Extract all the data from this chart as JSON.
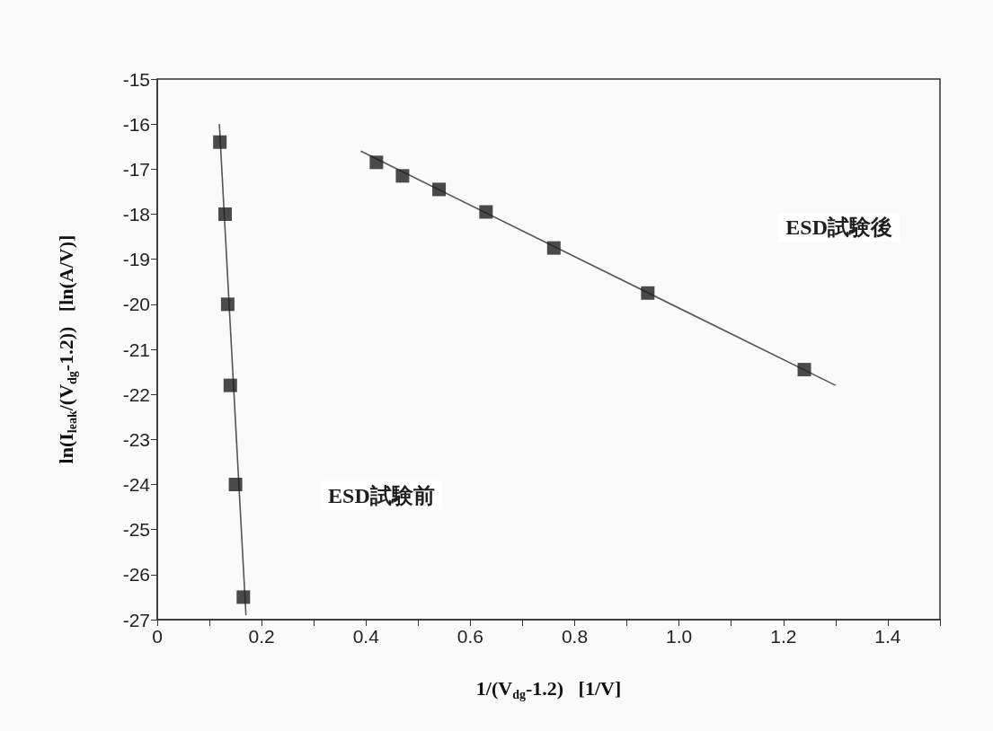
{
  "chart_data": {
    "type": "scatter",
    "xlabel": "1/(V$_{dg}$-1.2)   [1/V]",
    "ylabel": "ln(I$_{leak}$/(V$_{dg}$-1.2))   [ln(A/V)]",
    "series": [
      {
        "name": "ESD試験前",
        "color": "#1e1e1e",
        "marker": "square",
        "x": [
          0.12,
          0.13,
          0.135,
          0.14,
          0.15,
          0.165
        ],
        "values": [
          -16.4,
          -18.0,
          -20.0,
          -21.8,
          -24.0,
          -26.5
        ]
      },
      {
        "name": "ESD試験後",
        "color": "#1e1e1e",
        "marker": "square",
        "x": [
          0.42,
          0.47,
          0.54,
          0.63,
          0.76,
          0.94,
          1.24
        ],
        "values": [
          -16.85,
          -17.15,
          -17.45,
          -17.95,
          -18.75,
          -19.75,
          -21.45
        ]
      },
      {
        "type": "line",
        "color": "#555555",
        "marker": "none",
        "line_style": "solid",
        "x": [
          0.119,
          0.17
        ],
        "values": [
          -16.0,
          -26.9
        ]
      },
      {
        "type": "line",
        "color": "#555555",
        "marker": "none",
        "line_style": "solid",
        "x": [
          0.39,
          1.3
        ],
        "values": [
          -16.6,
          -21.8
        ]
      }
    ],
    "xlim": [
      0,
      1.5
    ],
    "xticks": [
      0,
      {
        "value": 0.1,
        "label": null
      },
      0.2,
      {
        "value": 0.3,
        "label": null
      },
      0.4,
      {
        "value": 0.5,
        "label": null
      },
      0.6,
      {
        "value": 0.7,
        "label": null
      },
      0.8,
      {
        "value": 0.9,
        "label": null
      },
      {
        "value": 1.0,
        "label": "1.0"
      },
      {
        "value": 1.1,
        "label": null
      },
      1.2,
      {
        "value": 1.3,
        "label": null
      },
      1.4,
      {
        "value": 1.5,
        "label": null
      }
    ],
    "ylim": [
      -27,
      -15
    ],
    "yticks": [
      -15,
      -16,
      -17,
      -18,
      -19,
      -20,
      -21,
      -22,
      -23,
      -24,
      -25,
      -26,
      -27
    ],
    "grid": false,
    "legend": false
  }
}
